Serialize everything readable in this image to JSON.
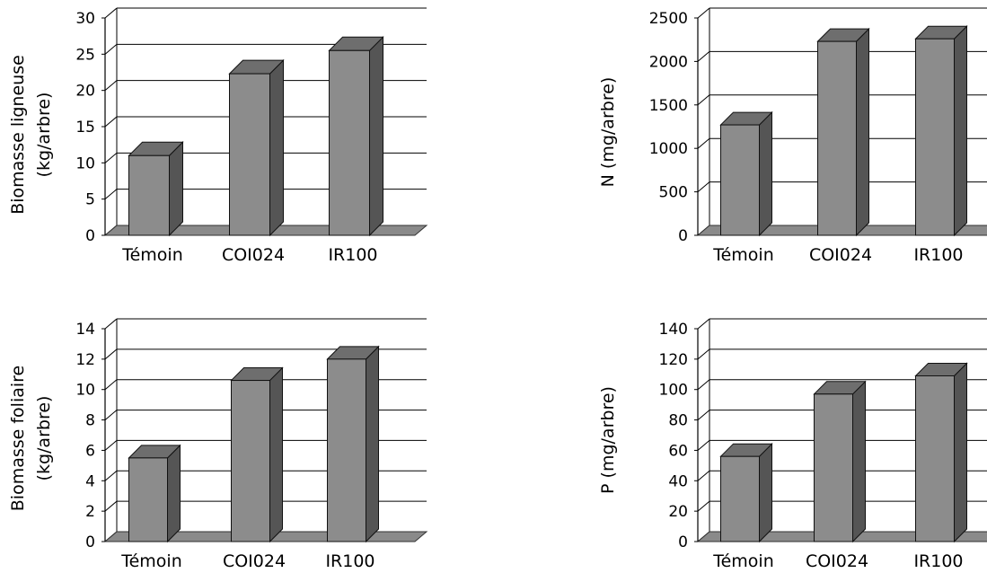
{
  "chart_data": [
    {
      "type": "bar",
      "categories": [
        "Témoin",
        "COI024",
        "IR100"
      ],
      "values": [
        11,
        22.3,
        25.5
      ],
      "ylabel": [
        "Biomasse ligneuse",
        "(kg/arbre)"
      ],
      "ylim": [
        0,
        30
      ],
      "yticks": [
        0,
        5,
        10,
        15,
        20,
        25,
        30
      ],
      "grid": true
    },
    {
      "type": "bar",
      "categories": [
        "Témoin",
        "COI024",
        "IR100"
      ],
      "values": [
        1270,
        2230,
        2260
      ],
      "ylabel": [
        "N  (mg/arbre)"
      ],
      "ylim": [
        0,
        2500
      ],
      "yticks": [
        0,
        500,
        1000,
        1500,
        2000,
        2500
      ],
      "grid": true
    },
    {
      "type": "bar",
      "categories": [
        "Témoin",
        "COI024",
        "IR100"
      ],
      "values": [
        5.5,
        10.6,
        12
      ],
      "ylabel": [
        "Biomasse foliaire",
        "(kg/arbre)"
      ],
      "ylim": [
        0,
        14
      ],
      "yticks": [
        0,
        2,
        4,
        6,
        8,
        10,
        12,
        14
      ],
      "grid": true
    },
    {
      "type": "bar",
      "categories": [
        "Témoin",
        "COI024",
        "IR100"
      ],
      "values": [
        56,
        97,
        109
      ],
      "ylabel": [
        "P (mg/arbre)"
      ],
      "ylim": [
        0,
        140
      ],
      "yticks": [
        0,
        20,
        40,
        60,
        80,
        100,
        120,
        140
      ],
      "grid": true
    }
  ],
  "colors": {
    "bar_front": "#8c8c8c",
    "bar_top": "#6e6e6e",
    "bar_side": "#555555",
    "floor": "#8a8a8a",
    "grid": "#000000"
  }
}
